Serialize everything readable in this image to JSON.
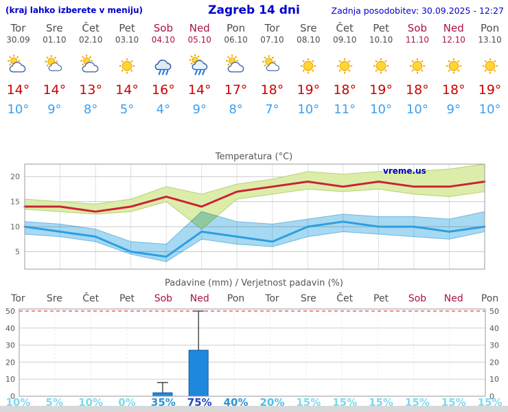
{
  "header": {
    "hint": "(kraj lahko izberete v meniju)",
    "title": "Zagreb 14 dni",
    "updated": "Zadnja posodobitev: 30.09.2025 - 12:27"
  },
  "days": [
    {
      "name": "Tor",
      "date": "30.09",
      "weekend": false,
      "icon": "sun-behind-cloud",
      "tmax": "14°",
      "tmin": "10°"
    },
    {
      "name": "Sre",
      "date": "01.10",
      "weekend": false,
      "icon": "partly-sunny",
      "tmax": "14°",
      "tmin": "9°"
    },
    {
      "name": "Čet",
      "date": "02.10",
      "weekend": false,
      "icon": "sun-behind-cloud",
      "tmax": "13°",
      "tmin": "8°"
    },
    {
      "name": "Pet",
      "date": "03.10",
      "weekend": false,
      "icon": "sunny",
      "tmax": "14°",
      "tmin": "5°"
    },
    {
      "name": "Sob",
      "date": "04.10",
      "weekend": true,
      "icon": "rain",
      "tmax": "16°",
      "tmin": "4°"
    },
    {
      "name": "Ned",
      "date": "05.10",
      "weekend": true,
      "icon": "rain-sun",
      "tmax": "14°",
      "tmin": "9°"
    },
    {
      "name": "Pon",
      "date": "06.10",
      "weekend": false,
      "icon": "sun-behind-cloud",
      "tmax": "17°",
      "tmin": "8°"
    },
    {
      "name": "Tor",
      "date": "07.10",
      "weekend": false,
      "icon": "partly-sunny",
      "tmax": "18°",
      "tmin": "7°"
    },
    {
      "name": "Sre",
      "date": "08.10",
      "weekend": false,
      "icon": "sunny",
      "tmax": "19°",
      "tmin": "10°"
    },
    {
      "name": "Čet",
      "date": "09.10",
      "weekend": false,
      "icon": "sunny",
      "tmax": "18°",
      "tmin": "11°"
    },
    {
      "name": "Pet",
      "date": "10.10",
      "weekend": false,
      "icon": "sunny",
      "tmax": "19°",
      "tmin": "10°"
    },
    {
      "name": "Sob",
      "date": "11.10",
      "weekend": true,
      "icon": "sunny",
      "tmax": "18°",
      "tmin": "10°"
    },
    {
      "name": "Ned",
      "date": "12.10",
      "weekend": true,
      "icon": "sunny",
      "tmax": "18°",
      "tmin": "9°"
    },
    {
      "name": "Pon",
      "date": "13.10",
      "weekend": false,
      "icon": "sunny",
      "tmax": "19°",
      "tmin": "10°"
    }
  ],
  "chart_data": [
    {
      "type": "line",
      "title": "Temperatura (°C)",
      "watermark": "vreme.us",
      "ylim": [
        1.5,
        22.5
      ],
      "yticks": [
        5,
        10,
        15,
        20
      ],
      "x_labels": [
        "Tor 30.09",
        "Sre 01.10",
        "Čet 02.10",
        "Pet 03.10",
        "Sob 04.10",
        "Ned 05.10",
        "Pon 06.10",
        "Tor 07.10",
        "Sre 08.10",
        "Čet 09.10",
        "Pet 10.10",
        "Sob 11.10",
        "Ned 12.10",
        "Pon 13.10"
      ],
      "series": [
        {
          "name": "max temperatura",
          "color": "#cc2233",
          "values": [
            14,
            14,
            13,
            14,
            16,
            14,
            17,
            18,
            19,
            18,
            19,
            18,
            18,
            19
          ]
        },
        {
          "name": "min temperatura",
          "color": "#2d9ee0",
          "values": [
            10,
            9,
            8,
            5,
            4,
            9,
            8,
            7,
            10,
            11,
            10,
            10,
            9,
            10
          ]
        }
      ],
      "bands": [
        {
          "name": "max-range",
          "color": "#dcedaa",
          "edge": "#b9cf74",
          "upper": [
            15.5,
            15,
            14.5,
            15.5,
            18,
            16.5,
            18.5,
            19.5,
            21,
            20.5,
            21,
            21,
            21.5,
            22.5
          ],
          "lower": [
            13.5,
            13,
            12.5,
            13,
            15,
            9.5,
            15.5,
            16.5,
            17.5,
            17,
            17.5,
            16.5,
            16,
            17
          ]
        },
        {
          "name": "min-range",
          "color": "#a7d9f2",
          "edge": "#6fb8e0",
          "upper": [
            11,
            10.5,
            9.5,
            7,
            6.5,
            13,
            11,
            10.5,
            11.5,
            12.5,
            12,
            12,
            11.5,
            13
          ],
          "lower": [
            8.5,
            8,
            7,
            4.5,
            3,
            7.5,
            6.5,
            6,
            8,
            9,
            8.5,
            8,
            7.5,
            9
          ]
        }
      ],
      "grid": true,
      "legend": "none"
    },
    {
      "type": "bar",
      "title": "Padavine (mm) / Verjetnost padavin (%)",
      "categories": [
        "Tor",
        "Sre",
        "Čet",
        "Pet",
        "Sob",
        "Ned",
        "Pon",
        "Tor",
        "Sre",
        "Čet",
        "Pet",
        "Sob",
        "Ned",
        "Pon"
      ],
      "values": [
        0,
        0,
        0,
        0,
        2,
        27,
        0,
        0,
        0,
        0,
        0,
        0,
        0,
        0
      ],
      "whiskers": [
        0,
        0,
        0,
        0,
        8,
        50,
        0,
        0,
        0,
        0,
        0,
        0,
        0,
        0
      ],
      "probabilities": [
        10,
        5,
        10,
        0,
        35,
        75,
        40,
        20,
        15,
        15,
        15,
        15,
        15,
        15
      ],
      "ylim": [
        0,
        51
      ],
      "yticks": [
        0,
        10,
        20,
        30,
        40,
        50
      ],
      "threshold": 50,
      "bar_color": "#1e88dc",
      "bar_edge": "#10589c",
      "grid": true,
      "legend": "none"
    }
  ],
  "colors": {
    "link_blue": "#0000cc",
    "weekday_text": "#4d4d4d",
    "weekend_text": "#aa1144",
    "temp_max": "#cc0000",
    "temp_min": "#3aa0f0",
    "chart_title": "#555555",
    "watermark_blue": "#0000bb",
    "threshold_red": "#e04545",
    "prob_high": "#2143c8",
    "prob_mid": "#2f93d6",
    "prob_low": "#54bce8",
    "prob_min": "#7fd9f2",
    "footer_gray": "#d8d8d8"
  }
}
